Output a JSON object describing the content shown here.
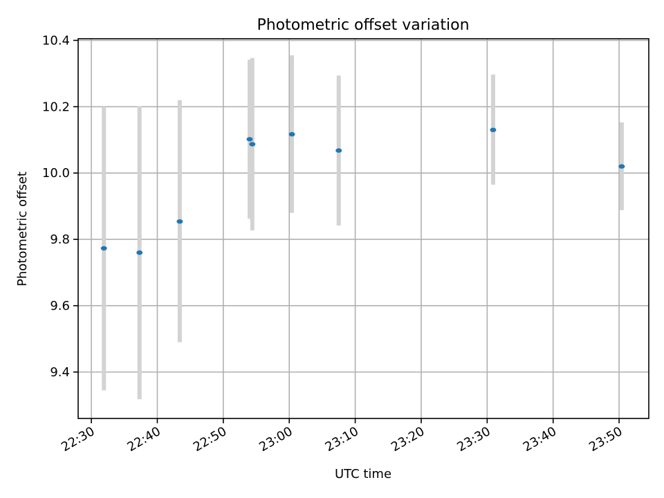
{
  "chart_data": {
    "type": "scatter",
    "title": "Photometric offset variation",
    "xlabel": "UTC time",
    "ylabel": "Photometric offset",
    "grid": true,
    "xlim": [
      "22:28:00",
      "23:54:30"
    ],
    "ylim": [
      9.26,
      10.405
    ],
    "x_ticks": [
      "22:30",
      "22:40",
      "22:50",
      "23:00",
      "23:10",
      "23:20",
      "23:30",
      "23:40",
      "23:50"
    ],
    "y_ticks": [
      9.4,
      9.6,
      9.8,
      10.0,
      10.2,
      10.4
    ],
    "y_tick_labels": [
      "9.4",
      "9.6",
      "9.8",
      "10.0",
      "10.2",
      "10.4"
    ],
    "points": [
      {
        "x": "22:31:54",
        "y": 9.773,
        "yerr": [
          9.345,
          10.2
        ]
      },
      {
        "x": "22:37:18",
        "y": 9.76,
        "yerr": [
          9.318,
          10.202
        ]
      },
      {
        "x": "22:43:24",
        "y": 9.854,
        "yerr": [
          9.49,
          10.22
        ]
      },
      {
        "x": "22:54:00",
        "y": 10.102,
        "yerr": [
          9.862,
          10.342
        ]
      },
      {
        "x": "22:54:24",
        "y": 10.087,
        "yerr": [
          9.827,
          10.347
        ]
      },
      {
        "x": "23:00:24",
        "y": 10.117,
        "yerr": [
          9.88,
          10.355
        ]
      },
      {
        "x": "23:07:30",
        "y": 10.068,
        "yerr": [
          9.842,
          10.294
        ]
      },
      {
        "x": "23:30:54",
        "y": 10.13,
        "yerr": [
          9.965,
          10.297
        ]
      },
      {
        "x": "23:50:24",
        "y": 10.02,
        "yerr": [
          9.888,
          10.153
        ]
      }
    ],
    "colors": {
      "point": "#1f77b4",
      "errorbar": "#d3d3d3",
      "grid": "#b0b0b0"
    }
  }
}
